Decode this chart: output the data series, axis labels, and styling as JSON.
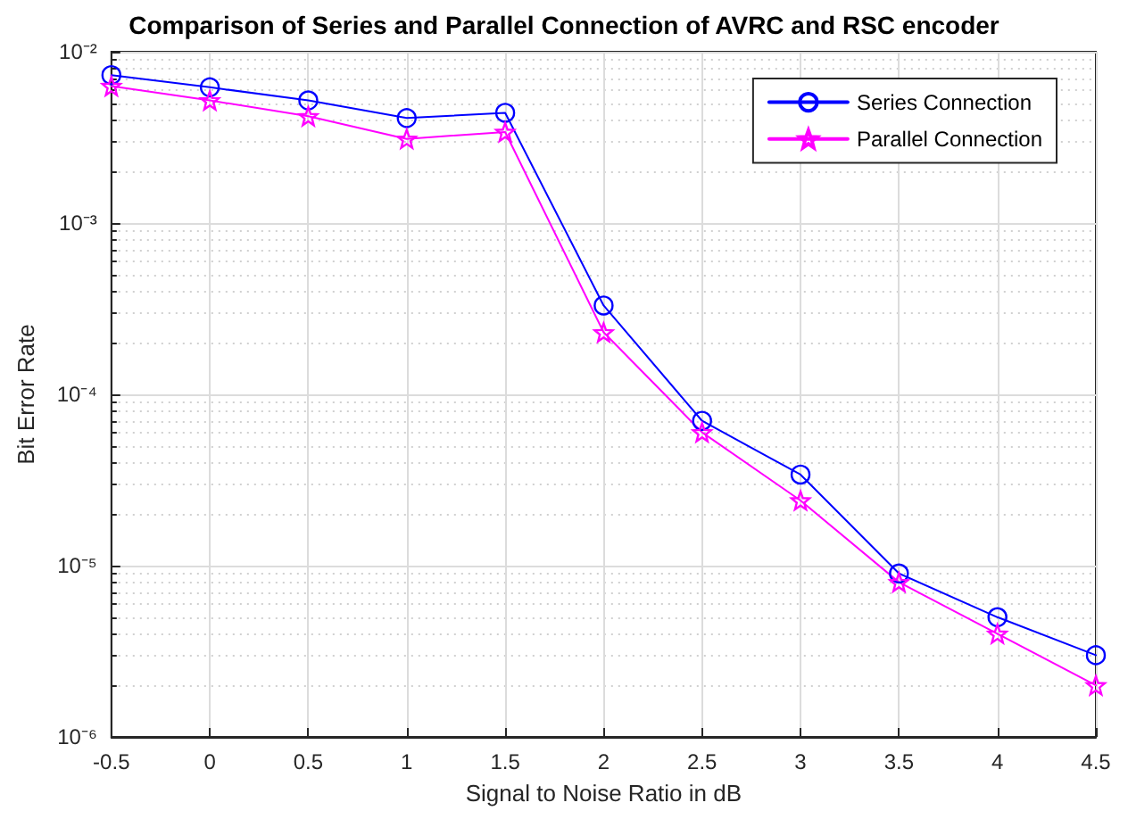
{
  "chart_data": {
    "type": "line",
    "title": "Comparison of Series and Parallel Connection of AVRC and RSC encoder",
    "xlabel": "Signal to Noise Ratio in dB",
    "ylabel": "Bit Error Rate",
    "x": [
      -0.5,
      0,
      0.5,
      1,
      1.5,
      2,
      2.5,
      3,
      3.5,
      4,
      4.5
    ],
    "series": [
      {
        "name": "Series Connection",
        "color": "#0000ff",
        "marker": "circle",
        "values": [
          0.0073,
          0.0062,
          0.0052,
          0.0041,
          0.0044,
          0.00033,
          7e-05,
          3.4e-05,
          9e-06,
          5e-06,
          3e-06
        ]
      },
      {
        "name": "Parallel Connection",
        "color": "#ff00ff",
        "marker": "star",
        "values": [
          0.0063,
          0.0052,
          0.0042,
          0.0031,
          0.0034,
          0.00023,
          6e-05,
          2.4e-05,
          8e-06,
          4e-06,
          2e-06
        ]
      }
    ],
    "log": "y",
    "xlim": [
      -0.5,
      4.5
    ],
    "xticks": [
      -0.5,
      0,
      0.5,
      1,
      1.5,
      2,
      2.5,
      3,
      3.5,
      4,
      4.5
    ],
    "ylim": [
      1e-06,
      0.01
    ],
    "yticks": [
      {
        "value": 1e-06,
        "label": "10⁻⁶"
      },
      {
        "value": 1e-05,
        "label": "10⁻⁵"
      },
      {
        "value": 0.0001,
        "label": "10⁻⁴"
      },
      {
        "value": 0.001,
        "label": "10⁻³"
      },
      {
        "value": 0.01,
        "label": "10⁻²"
      }
    ],
    "grid": true,
    "legend": "top right",
    "line_style": "solid"
  }
}
